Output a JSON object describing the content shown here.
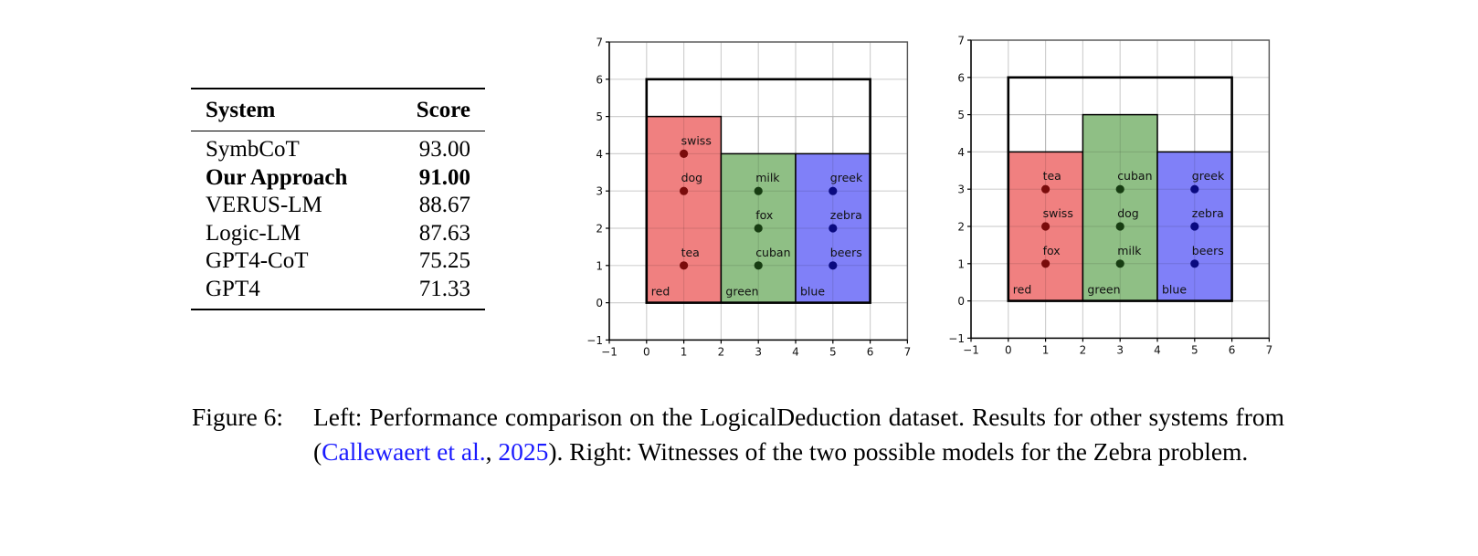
{
  "table": {
    "headers": [
      "System",
      "Score"
    ],
    "rows": [
      {
        "system": "SymbCoT",
        "score": "93.00",
        "bold": false
      },
      {
        "system": "Our Approach",
        "score": "91.00",
        "bold": true
      },
      {
        "system": "VERUS-LM",
        "score": "88.67",
        "bold": false
      },
      {
        "system": "Logic-LM",
        "score": "87.63",
        "bold": false
      },
      {
        "system": "GPT4-CoT",
        "score": "75.25",
        "bold": false
      },
      {
        "system": "GPT4",
        "score": "71.33",
        "bold": false
      }
    ]
  },
  "caption": {
    "label": "Figure 6:",
    "part1": "Left: Performance comparison on the LogicalDeduction dataset. Results for other systems from (",
    "cite_authors": "Callewaert et al.",
    "cite_sep": ", ",
    "cite_year": "2025",
    "part2": "). Right: Witnesses of the two possible models for the Zebra problem."
  },
  "colors": {
    "red_fill": "#f08080",
    "green_fill": "#8fbf85",
    "blue_fill": "#8080f8",
    "red_dot": "#7a0b0b",
    "green_dot": "#173d12",
    "blue_dot": "#0a0a80",
    "cite_link": "#1a1aff"
  },
  "chart_data": [
    {
      "type": "scatter",
      "title": "",
      "xlabel": "",
      "ylabel": "",
      "xlim": [
        -1,
        7
      ],
      "ylim": [
        -1,
        7
      ],
      "xticks": [
        -1,
        0,
        1,
        2,
        3,
        4,
        5,
        6,
        7
      ],
      "yticks": [
        -1,
        0,
        1,
        2,
        3,
        4,
        5,
        6,
        7
      ],
      "grid": true,
      "outer_box": {
        "x0": 0,
        "x1": 6,
        "y0": 0,
        "y1": 6
      },
      "houses": [
        {
          "label": "red",
          "color": "red",
          "x0": 0,
          "x1": 2,
          "height": 5
        },
        {
          "label": "green",
          "color": "green",
          "x0": 2,
          "x1": 4,
          "height": 4
        },
        {
          "label": "blue",
          "color": "blue",
          "x0": 4,
          "x1": 6,
          "height": 4
        }
      ],
      "points": [
        {
          "label": "swiss",
          "x": 1,
          "y": 4,
          "color": "red"
        },
        {
          "label": "dog",
          "x": 1,
          "y": 3,
          "color": "red"
        },
        {
          "label": "tea",
          "x": 1,
          "y": 1,
          "color": "red"
        },
        {
          "label": "milk",
          "x": 3,
          "y": 3,
          "color": "green"
        },
        {
          "label": "fox",
          "x": 3,
          "y": 2,
          "color": "green"
        },
        {
          "label": "cuban",
          "x": 3,
          "y": 1,
          "color": "green"
        },
        {
          "label": "greek",
          "x": 5,
          "y": 3,
          "color": "blue"
        },
        {
          "label": "zebra",
          "x": 5,
          "y": 2,
          "color": "blue"
        },
        {
          "label": "beers",
          "x": 5,
          "y": 1,
          "color": "blue"
        }
      ]
    },
    {
      "type": "scatter",
      "title": "",
      "xlabel": "",
      "ylabel": "",
      "xlim": [
        -1,
        7
      ],
      "ylim": [
        -1,
        7
      ],
      "xticks": [
        -1,
        0,
        1,
        2,
        3,
        4,
        5,
        6,
        7
      ],
      "yticks": [
        -1,
        0,
        1,
        2,
        3,
        4,
        5,
        6,
        7
      ],
      "grid": true,
      "outer_box": {
        "x0": 0,
        "x1": 6,
        "y0": 0,
        "y1": 6
      },
      "houses": [
        {
          "label": "red",
          "color": "red",
          "x0": 0,
          "x1": 2,
          "height": 4
        },
        {
          "label": "green",
          "color": "green",
          "x0": 2,
          "x1": 4,
          "height": 5
        },
        {
          "label": "blue",
          "color": "blue",
          "x0": 4,
          "x1": 6,
          "height": 4
        }
      ],
      "points": [
        {
          "label": "tea",
          "x": 1,
          "y": 3,
          "color": "red"
        },
        {
          "label": "swiss",
          "x": 1,
          "y": 2,
          "color": "red"
        },
        {
          "label": "fox",
          "x": 1,
          "y": 1,
          "color": "red"
        },
        {
          "label": "cuban",
          "x": 3,
          "y": 3,
          "color": "green"
        },
        {
          "label": "dog",
          "x": 3,
          "y": 2,
          "color": "green"
        },
        {
          "label": "milk",
          "x": 3,
          "y": 1,
          "color": "green"
        },
        {
          "label": "greek",
          "x": 5,
          "y": 3,
          "color": "blue"
        },
        {
          "label": "zebra",
          "x": 5,
          "y": 2,
          "color": "blue"
        },
        {
          "label": "beers",
          "x": 5,
          "y": 1,
          "color": "blue"
        }
      ]
    }
  ]
}
